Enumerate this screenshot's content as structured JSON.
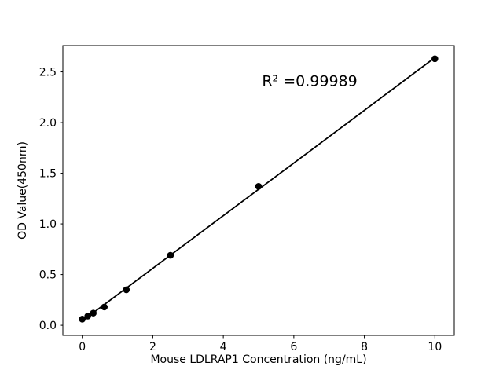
{
  "chart_data": {
    "type": "scatter",
    "title": "",
    "xlabel": "Mouse LDLRAP1 Concentration (ng/mL)",
    "ylabel": "OD Value(450nm)",
    "x": [
      0,
      0.156,
      0.3125,
      0.625,
      1.25,
      2.5,
      5,
      10
    ],
    "y": [
      0.06,
      0.09,
      0.12,
      0.18,
      0.35,
      0.69,
      1.37,
      2.63
    ],
    "fit_line": {
      "kind": "linear_regression",
      "x_start": 0,
      "x_end": 10
    },
    "annotation": {
      "text": "R² =0.99989",
      "x": 6.45,
      "y": 2.41
    },
    "xticks": {
      "values": [
        0,
        2,
        4,
        6,
        8,
        10
      ],
      "labels": [
        "0",
        "2",
        "4",
        "6",
        "8",
        "10"
      ]
    },
    "yticks": {
      "values": [
        0,
        0.5,
        1.0,
        1.5,
        2.0,
        2.5
      ],
      "labels": [
        "0.0",
        "0.5",
        "1.0",
        "1.5",
        "2.0",
        "2.5"
      ]
    },
    "xlim": [
      -0.55,
      10.55
    ],
    "ylim": [
      -0.1,
      2.76
    ],
    "grid": false,
    "legend": null,
    "colors": {
      "line": "#000000",
      "marker": "#000000",
      "spine": "#000000",
      "text": "#000000",
      "background": "#ffffff"
    }
  }
}
